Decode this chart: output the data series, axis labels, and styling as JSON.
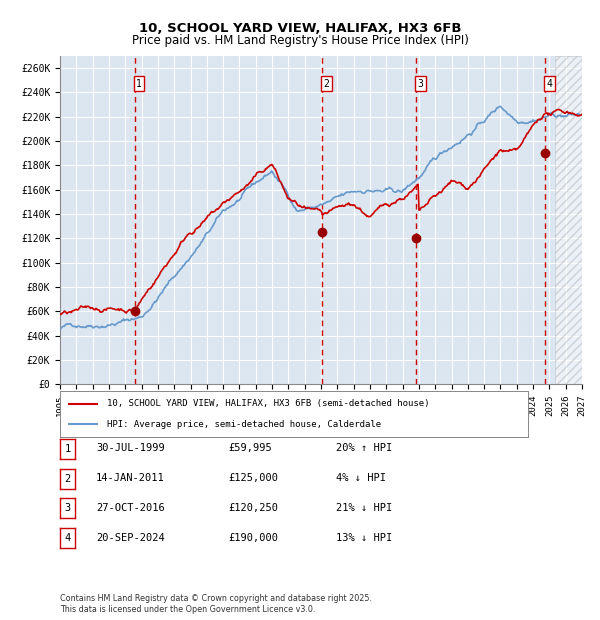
{
  "title1": "10, SCHOOL YARD VIEW, HALIFAX, HX3 6FB",
  "title2": "Price paid vs. HM Land Registry's House Price Index (HPI)",
  "xlabel": "",
  "ylabel": "",
  "ylim": [
    0,
    270000
  ],
  "ytick_step": 20000,
  "bg_color": "#dce6f1",
  "plot_bg_color": "#dce6f1",
  "grid_color": "#ffffff",
  "sale_dates": [
    1999.57,
    2011.04,
    2016.83,
    2024.72
  ],
  "sale_prices": [
    59995,
    125000,
    120250,
    190000
  ],
  "sale_labels": [
    "1",
    "2",
    "3",
    "4"
  ],
  "vline_color": "#cc0000",
  "sale_dot_color": "#990000",
  "hpi_line_color": "#6699cc",
  "price_line_color": "#cc0000",
  "legend_entries": [
    "10, SCHOOL YARD VIEW, HALIFAX, HX3 6FB (semi-detached house)",
    "HPI: Average price, semi-detached house, Calderdale"
  ],
  "table_rows": [
    [
      "1",
      "30-JUL-1999",
      "£59,995",
      "20% ↑ HPI"
    ],
    [
      "2",
      "14-JAN-2011",
      "£125,000",
      "4% ↓ HPI"
    ],
    [
      "3",
      "27-OCT-2016",
      "£120,250",
      "21% ↓ HPI"
    ],
    [
      "4",
      "20-SEP-2024",
      "£190,000",
      "13% ↓ HPI"
    ]
  ],
  "footer": "Contains HM Land Registry data © Crown copyright and database right 2025.\nThis data is licensed under the Open Government Licence v3.0.",
  "xstart": 1995.0,
  "xend": 2027.0,
  "xticks": [
    1995,
    1996,
    1997,
    1998,
    1999,
    2000,
    2001,
    2002,
    2003,
    2004,
    2005,
    2006,
    2007,
    2008,
    2009,
    2010,
    2011,
    2012,
    2013,
    2014,
    2015,
    2016,
    2017,
    2018,
    2019,
    2020,
    2021,
    2022,
    2023,
    2024,
    2025,
    2026,
    2027
  ],
  "hatch_start": 2025.33,
  "hatch_end": 2027.0
}
